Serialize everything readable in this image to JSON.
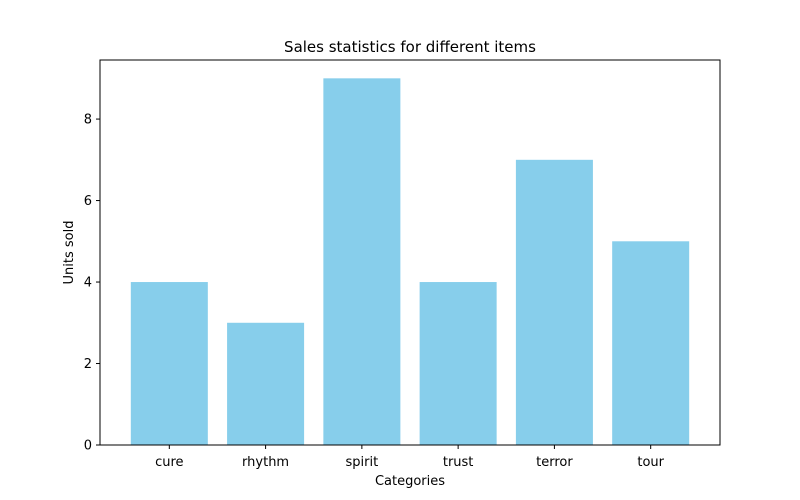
{
  "chart_data": {
    "type": "bar",
    "title": "Sales statistics for different items",
    "xlabel": "Categories",
    "ylabel": "Units sold",
    "categories": [
      "cure",
      "rhythm",
      "spirit",
      "trust",
      "terror",
      "tour"
    ],
    "values": [
      4,
      3,
      9,
      4,
      7,
      5
    ],
    "ylim": [
      0,
      9.45
    ],
    "yticks": [
      0,
      2,
      4,
      6,
      8
    ],
    "grid": false,
    "bar_color": "#87CEEB"
  }
}
